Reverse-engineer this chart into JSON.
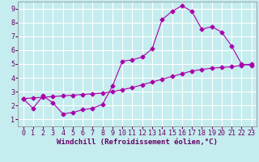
{
  "xlabel": "Windchill (Refroidissement éolien,°C)",
  "background_color": "#c5ecee",
  "line_color": "#aa00aa",
  "xlim": [
    -0.5,
    23.5
  ],
  "ylim": [
    0.5,
    9.5
  ],
  "xticks": [
    0,
    1,
    2,
    3,
    4,
    5,
    6,
    7,
    8,
    9,
    10,
    11,
    12,
    13,
    14,
    15,
    16,
    17,
    18,
    19,
    20,
    21,
    22,
    23
  ],
  "yticks": [
    1,
    2,
    3,
    4,
    5,
    6,
    7,
    8,
    9
  ],
  "series1_x": [
    0,
    1,
    2,
    3,
    4,
    5,
    6,
    7,
    8,
    9,
    10,
    11,
    12,
    13,
    14,
    15,
    16,
    17,
    18,
    19,
    20,
    21,
    22,
    23
  ],
  "series1_y": [
    2.5,
    1.8,
    2.7,
    2.2,
    1.4,
    1.5,
    1.7,
    1.8,
    2.1,
    3.4,
    5.2,
    5.3,
    5.5,
    6.1,
    8.2,
    8.8,
    9.2,
    8.8,
    7.5,
    7.7,
    7.3,
    6.3,
    5.0,
    4.9
  ],
  "series2_x": [
    0,
    1,
    2,
    3,
    4,
    5,
    6,
    7,
    8,
    9,
    10,
    11,
    12,
    13,
    14,
    15,
    16,
    17,
    18,
    19,
    20,
    21,
    22,
    23
  ],
  "series2_y": [
    2.5,
    2.55,
    2.6,
    2.65,
    2.7,
    2.75,
    2.8,
    2.85,
    2.9,
    3.0,
    3.15,
    3.3,
    3.5,
    3.7,
    3.9,
    4.1,
    4.3,
    4.5,
    4.6,
    4.7,
    4.75,
    4.8,
    4.9,
    5.0
  ],
  "grid_color": "#ffffff",
  "xlabel_fontsize": 6.5,
  "tick_fontsize": 6,
  "line_width": 0.8,
  "marker_size": 2.5,
  "marker": "D",
  "spine_color": "#888888",
  "axis_bg": "#c5ecee",
  "label_color": "#660066"
}
